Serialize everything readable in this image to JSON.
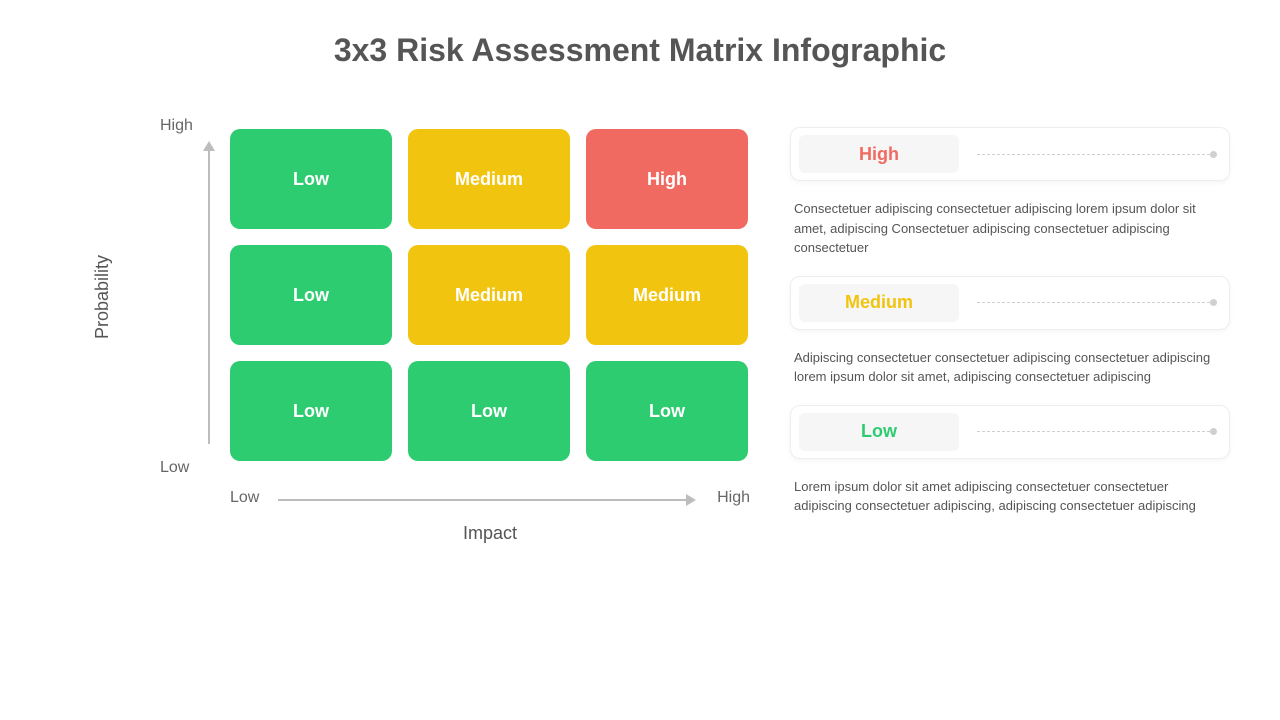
{
  "title": "3x3 Risk Assessment Matrix Infographic",
  "colors": {
    "low": "#2ecc71",
    "medium": "#f1c40f",
    "high": "#f16a61",
    "text": "#555555",
    "axis": "#bdbdbd",
    "bg": "#ffffff"
  },
  "matrix": {
    "type": "risk-matrix",
    "y_axis": {
      "title": "Probability",
      "low": "Low",
      "high": "High"
    },
    "x_axis": {
      "title": "Impact",
      "low": "Low",
      "high": "High"
    },
    "cell_radius": 10,
    "cell_fontsize": 18,
    "cells": [
      {
        "label": "Low",
        "color": "#2ecc71"
      },
      {
        "label": "Medium",
        "color": "#f1c40f"
      },
      {
        "label": "High",
        "color": "#f16a61"
      },
      {
        "label": "Low",
        "color": "#2ecc71"
      },
      {
        "label": "Medium",
        "color": "#f1c40f"
      },
      {
        "label": "Medium",
        "color": "#f1c40f"
      },
      {
        "label": "Low",
        "color": "#2ecc71"
      },
      {
        "label": "Low",
        "color": "#2ecc71"
      },
      {
        "label": "Low",
        "color": "#2ecc71"
      }
    ]
  },
  "legend": [
    {
      "label": "High",
      "label_color": "#f16a61",
      "desc": "Consectetuer adipiscing consectetuer adipiscing lorem ipsum dolor sit amet, adipiscing Consectetuer adipiscing consectetuer adipiscing consectetuer"
    },
    {
      "label": "Medium",
      "label_color": "#f1c40f",
      "desc": "Adipiscing consectetuer consectetuer adipiscing consectetuer adipiscing lorem ipsum dolor sit amet, adipiscing consectetuer adipiscing"
    },
    {
      "label": "Low",
      "label_color": "#2ecc71",
      "desc": "Lorem ipsum dolor sit amet adipiscing consectetuer consectetuer adipiscing consectetuer adipiscing, adipiscing consectetuer adipiscing"
    }
  ]
}
